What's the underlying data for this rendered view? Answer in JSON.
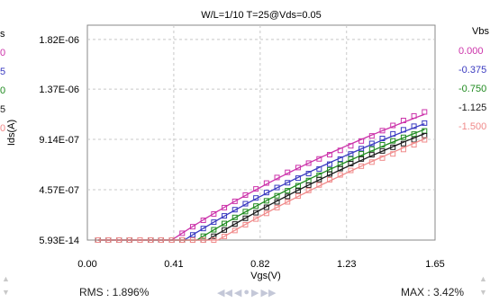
{
  "chart_data": {
    "type": "line",
    "title": "W/L=1/10   T=25@Vds=0.05",
    "xlabel": "Vgs(V)",
    "ylabel": "Ids(A)",
    "xlim": [
      0.0,
      1.65
    ],
    "ylim": [
      0.0,
      1.95e-06
    ],
    "x_ticks": [
      "0.00",
      "0.41",
      "0.82",
      "1.23",
      "1.65"
    ],
    "x_tick_values": [
      0.0,
      0.41,
      0.82,
      1.23,
      1.65
    ],
    "y_ticks": [
      "5.93E-14",
      "4.57E-07",
      "9.14E-07",
      "1.37E-06",
      "1.82E-06"
    ],
    "y_tick_values": [
      0.0,
      4.57e-07,
      9.14e-07,
      1.37e-06,
      1.82e-06
    ],
    "grid": true,
    "legend_title": "Vbs",
    "legend_position": "right",
    "series_style": "line = model, squares = measured",
    "x": [
      0.05,
      0.1,
      0.15,
      0.2,
      0.25,
      0.3,
      0.35,
      0.4,
      0.45,
      0.5,
      0.55,
      0.6,
      0.65,
      0.7,
      0.75,
      0.8,
      0.85,
      0.9,
      0.95,
      1.0,
      1.05,
      1.1,
      1.15,
      1.2,
      1.25,
      1.3,
      1.35,
      1.4,
      1.45,
      1.5,
      1.55,
      1.6
    ],
    "series": [
      {
        "name": "0.000",
        "color": "#cc33aa",
        "vth": 0.4,
        "k": 1.27e-06,
        "sat": 0.28
      },
      {
        "name": "-0.375",
        "color": "#3a3ac0",
        "vth": 0.46,
        "k": 1.2e-06,
        "sat": 0.26
      },
      {
        "name": "-0.750",
        "color": "#1f8a1f",
        "vth": 0.52,
        "k": 1.17e-06,
        "sat": 0.24
      },
      {
        "name": "-1.125",
        "color": "#1a1a1a",
        "vth": 0.57,
        "k": 1.15e-06,
        "sat": 0.22
      },
      {
        "name": "-1.500",
        "color": "#f08a8a",
        "vth": 0.62,
        "k": 1.12e-06,
        "sat": 0.2
      }
    ]
  },
  "left_strip": {
    "items": [
      {
        "text": "s",
        "color": "#000000"
      },
      {
        "text": "0",
        "color": "#cc33aa"
      },
      {
        "text": "5",
        "color": "#3a3ac0"
      },
      {
        "text": "0",
        "color": "#1f8a1f"
      },
      {
        "text": "5",
        "color": "#1a1a1a"
      },
      {
        "text": "0",
        "color": "#f08a8a"
      }
    ]
  },
  "stats": {
    "rms": "RMS : 1.896%",
    "max": "MAX : 3.42%"
  },
  "nav": {
    "first": "◀◀",
    "prev": "◀",
    "current": "●",
    "next": "▶",
    "last": "▶▶"
  },
  "scroll": {
    "left_up": "▲",
    "left_down": "▼",
    "right_up": "▲",
    "right_down": "▼"
  }
}
